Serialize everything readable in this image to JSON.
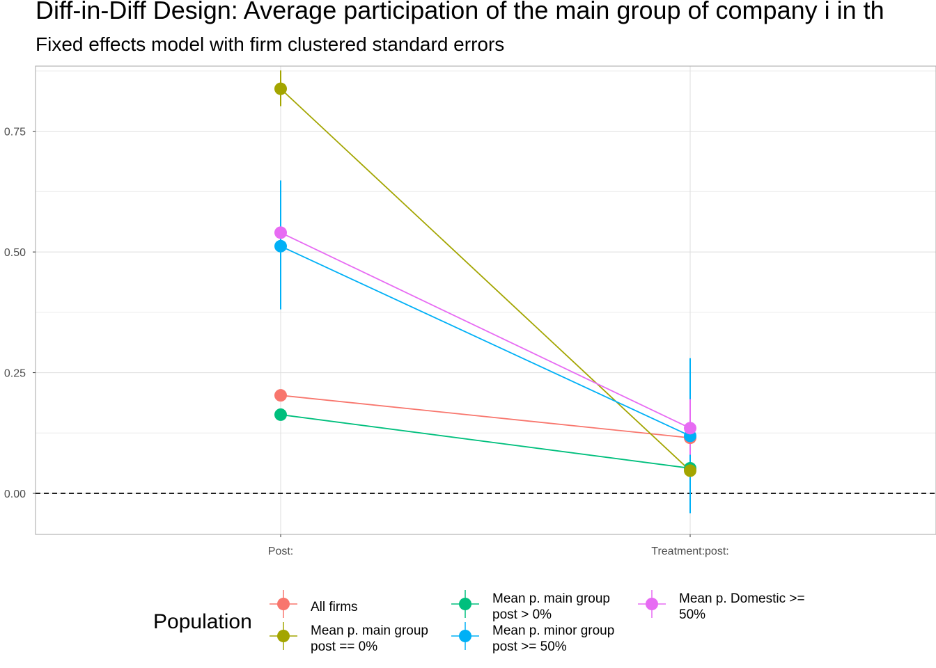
{
  "title": "Diff-in-Diff Design: Average participation of the main group of company i in th",
  "subtitle": "Fixed effects model with firm clustered standard errors",
  "chart_data": {
    "type": "line",
    "categories": [
      "Post:",
      "Treatment:post:"
    ],
    "y_ticks": [
      "0.00",
      "0.25",
      "0.50",
      "0.75"
    ],
    "y_tick_values": [
      0,
      0.25,
      0.5,
      0.75
    ],
    "ylim": [
      -0.085,
      0.885
    ],
    "reference_line": 0,
    "grid": true,
    "xlabel": "",
    "ylabel": "",
    "legend": {
      "title": "Population",
      "position": "bottom"
    },
    "series": [
      {
        "name": "All firms",
        "color": "#F8766D",
        "values": [
          0.203,
          0.115
        ],
        "ci_low": [
          0.198,
          0.1
        ],
        "ci_high": [
          0.208,
          0.13
        ]
      },
      {
        "name": "Mean p. main group post == 0%",
        "label_lines": [
          "Mean p. main group",
          "post == 0%"
        ],
        "color": "#A3A500",
        "values": [
          0.838,
          0.047
        ],
        "ci_low": [
          0.802,
          0.035
        ],
        "ci_high": [
          0.876,
          0.06
        ]
      },
      {
        "name": "Mean p. main group post > 0%",
        "label_lines": [
          "Mean p. main group",
          "post > 0%"
        ],
        "color": "#00BF7D",
        "values": [
          0.163,
          0.052
        ],
        "ci_low": [
          0.158,
          0.04
        ],
        "ci_high": [
          0.168,
          0.064
        ]
      },
      {
        "name": "Mean p. minor group post >= 50%",
        "label_lines": [
          "Mean p. minor group",
          "post >= 50%"
        ],
        "color": "#00B0F6",
        "values": [
          0.512,
          0.119
        ],
        "ci_low": [
          0.381,
          -0.041
        ],
        "ci_high": [
          0.648,
          0.28
        ]
      },
      {
        "name": "Mean p. Domestic >= 50%",
        "label_lines": [
          "Mean p. Domestic >=",
          "50%"
        ],
        "color": "#E76BF3",
        "values": [
          0.54,
          0.135
        ],
        "ci_low": [
          0.535,
          0.08
        ],
        "ci_high": [
          0.545,
          0.195
        ]
      }
    ]
  }
}
